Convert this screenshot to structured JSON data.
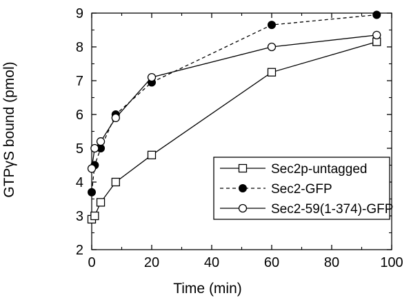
{
  "chart_data": {
    "type": "line",
    "xlabel": "Time (min)",
    "ylabel": "GTPγS bound (pmol)",
    "xlim": [
      0,
      100
    ],
    "ylim": [
      2,
      9
    ],
    "xticks": [
      0,
      20,
      40,
      60,
      80,
      100
    ],
    "yticks": [
      2,
      3,
      4,
      5,
      6,
      7,
      8,
      9
    ],
    "grid": false,
    "legend_position": "lower-right",
    "series": [
      {
        "name": "Sec2p-untagged",
        "marker": "open-square",
        "line_style": "solid",
        "x": [
          0,
          1,
          3,
          8,
          20,
          60,
          95
        ],
        "y": [
          2.9,
          3.0,
          3.4,
          4.0,
          4.8,
          7.25,
          8.15
        ]
      },
      {
        "name": "Sec2-GFP",
        "marker": "filled-circle",
        "line_style": "dashed",
        "x": [
          0,
          1,
          3,
          8,
          20,
          60,
          95
        ],
        "y": [
          3.7,
          4.5,
          5.0,
          6.0,
          6.95,
          8.65,
          8.95
        ]
      },
      {
        "name": "Sec2-59(1-374)-GFP",
        "marker": "open-circle",
        "line_style": "solid",
        "x": [
          0,
          1,
          3,
          8,
          20,
          60,
          95
        ],
        "y": [
          4.4,
          5.0,
          5.2,
          5.9,
          7.1,
          8.0,
          8.35
        ]
      }
    ]
  }
}
